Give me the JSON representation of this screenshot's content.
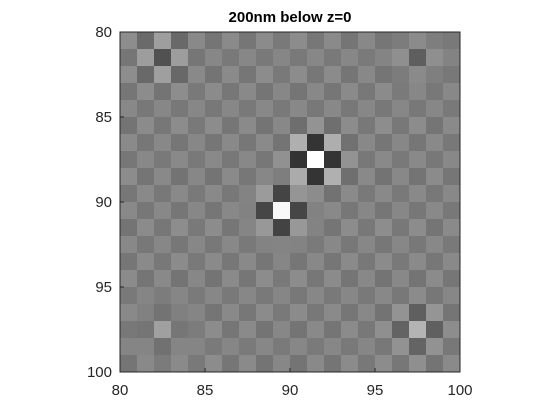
{
  "chart_data": {
    "type": "heatmap",
    "title": "200nm below z=0",
    "xlabel": "",
    "ylabel": "",
    "xlim": [
      80,
      100
    ],
    "ylim": [
      80,
      100
    ],
    "y_direction": "reversed",
    "colormap": "gray",
    "x_ticks": [
      "80",
      "85",
      "90",
      "95",
      "100"
    ],
    "y_ticks": [
      "80",
      "85",
      "90",
      "95",
      "100"
    ],
    "grid_size": 20,
    "grid": false,
    "colorbar": false,
    "sources": [
      {
        "x": 91.5,
        "y": 87.5,
        "strength": 1.0,
        "polarity": 1
      },
      {
        "x": 89.5,
        "y": 90.5,
        "strength": 1.0,
        "polarity": -1
      },
      {
        "x": 82.5,
        "y": 81.5,
        "strength": 0.32,
        "polarity": 1
      },
      {
        "x": 97.5,
        "y": 81.5,
        "strength": 0.32,
        "polarity": -1
      },
      {
        "x": 82.5,
        "y": 97.5,
        "strength": 0.32,
        "polarity": -1
      },
      {
        "x": 97.5,
        "y": 97.5,
        "strength": 0.32,
        "polarity": 1
      }
    ],
    "background_pattern_amplitude": 0.1
  }
}
